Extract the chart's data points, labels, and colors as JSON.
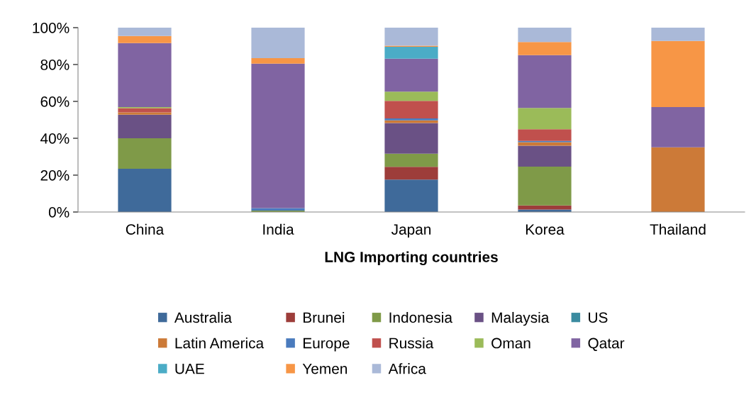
{
  "chart_data": {
    "type": "bar",
    "stacked": true,
    "xlabel": "LNG Importing countries",
    "categories": [
      "China",
      "India",
      "Japan",
      "Korea",
      "Thailand"
    ],
    "ylim": [
      0,
      100
    ],
    "yticks": [
      {
        "value": 0,
        "label": "0%"
      },
      {
        "value": 20,
        "label": "20%"
      },
      {
        "value": 40,
        "label": "40%"
      },
      {
        "value": 60,
        "label": "60%"
      },
      {
        "value": 80,
        "label": "80%"
      },
      {
        "value": 100,
        "label": "100%"
      }
    ],
    "grid": false,
    "legend": "bottom",
    "series": [
      {
        "name": "Australia",
        "color": "#3f6a9a",
        "values": [
          23.5,
          0,
          17.6,
          1.3,
          0
        ]
      },
      {
        "name": "Brunei",
        "color": "#9d3d3a",
        "values": [
          0,
          0,
          6.9,
          2.3,
          0
        ]
      },
      {
        "name": "Indonesia",
        "color": "#7f9a48",
        "values": [
          16.5,
          0.8,
          7.1,
          21.0,
          0
        ]
      },
      {
        "name": "Malaysia",
        "color": "#6a5185",
        "values": [
          12.8,
          0,
          16.7,
          11.4,
          0
        ]
      },
      {
        "name": "US",
        "color": "#3b8ba0",
        "values": [
          0,
          0,
          0,
          0,
          0
        ]
      },
      {
        "name": "Latin America",
        "color": "#cc7a38",
        "values": [
          1.2,
          0,
          1.4,
          1.9,
          35.1
        ]
      },
      {
        "name": "Europe",
        "color": "#4a7bbd",
        "values": [
          0,
          1.3,
          1.1,
          0.7,
          0
        ]
      },
      {
        "name": "Russia",
        "color": "#c0504d",
        "values": [
          2.3,
          0,
          9.5,
          6.3,
          0
        ]
      },
      {
        "name": "Oman",
        "color": "#9bbb59",
        "values": [
          0.6,
          0,
          5.0,
          11.5,
          0
        ]
      },
      {
        "name": "Qatar",
        "color": "#8064a2",
        "values": [
          34.7,
          78.4,
          17.9,
          28.7,
          21.8
        ]
      },
      {
        "name": "UAE",
        "color": "#4bacc6",
        "values": [
          0,
          0,
          6.4,
          0,
          0
        ]
      },
      {
        "name": "Yemen",
        "color": "#f79646",
        "values": [
          3.9,
          3.0,
          0.6,
          7.1,
          35.9
        ]
      },
      {
        "name": "Africa",
        "color": "#aab9d8",
        "values": [
          4.5,
          16.8,
          9.8,
          7.8,
          7.2
        ]
      }
    ]
  }
}
